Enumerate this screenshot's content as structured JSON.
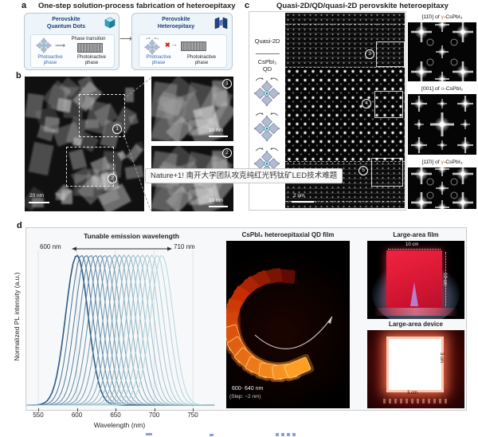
{
  "colors": {
    "accent_navy": "#1d3f77",
    "photoactive_blue": "#3a66b0",
    "greek_orange": "#e06a10",
    "curve_dark": "#2d5c86",
    "curve_light": "#b4d4da",
    "film_red": "#e8243f",
    "tile_orange": "#ff9e25"
  },
  "panel_a": {
    "label": "a",
    "title": "One-step solution-process fabrication of heteroepitaxy",
    "left_box": {
      "title_line1": "Perovskite",
      "title_line2": "Quantum Dots",
      "transition_label": "Phase transition",
      "active_label_1": "Photoactive",
      "active_label_2": "phase",
      "inactive_label_1": "Photoinactive",
      "inactive_label_2": "phase"
    },
    "right_box": {
      "title_line1": "Perovskite",
      "title_line2": "Heteroepitaxy",
      "active_label_1": "Photoactive",
      "active_label_2": "phase",
      "inactive_label_1": "Photoinactive",
      "inactive_label_2": "phase"
    }
  },
  "panel_b": {
    "label": "b",
    "scale_main": "20 nm",
    "roi1": "1",
    "roi2": "2",
    "inset1_num": "1",
    "inset1_scale": "10 nm",
    "inset2_num": "2",
    "inset2_scale": "10 nm"
  },
  "watermark": "Nature+1! 南开大学团队攻克纯红光钙钛矿LED技术难题",
  "panel_c": {
    "label": "c",
    "title": "Quasi-2D/QD/quasi-2D perovskite heteroepitaxy",
    "strip_top": "Quasi-2D",
    "strip_mid1": "CsPbI₃",
    "strip_mid2": "QD",
    "stem_scale": "2 nm",
    "marker3": "3",
    "marker4": "4",
    "marker5": "5",
    "ffts": [
      {
        "pre": "[11̄0] of ",
        "greek": "γ",
        "post": "-CsPbI₃"
      },
      {
        "pre": "[001] of ",
        "greek": "α",
        "post": "-CsPbI₃"
      },
      {
        "pre": "[11̄0] of ",
        "greek": "γ",
        "post": "-CsPbI₃"
      }
    ]
  },
  "panel_d": {
    "label": "d",
    "film": {
      "title": "CsPbI₃ heteroepitaxial QD film",
      "range1": "600- 640 nm",
      "range2": "(Step: ~2 nm)"
    },
    "large_film": {
      "title": "Large-area film",
      "top_label": "10 cm",
      "side_label": "10 cm"
    },
    "large_device": {
      "title": "Large-area device",
      "side_label": "3 cm",
      "bottom_label": "3 cm"
    }
  },
  "chart_data": {
    "type": "line",
    "title": "Tunable emission wavelength",
    "xlabel": "Wavelength (nm)",
    "ylabel": "Normalized PL intensity (a.u.)",
    "range_left_label": "600 nm",
    "range_right_label": "710 nm",
    "xlim": [
      535,
      780
    ],
    "xticks": [
      550,
      600,
      650,
      700,
      750
    ],
    "grid": true,
    "legend": "none",
    "peak_wavelengths_nm": [
      600,
      606,
      612,
      618,
      624,
      630,
      636,
      642,
      649,
      655,
      661,
      667,
      673,
      679,
      685,
      691,
      697,
      704,
      710
    ],
    "fwhm_nm": 34,
    "normalized_peak_intensity": 1.0
  }
}
